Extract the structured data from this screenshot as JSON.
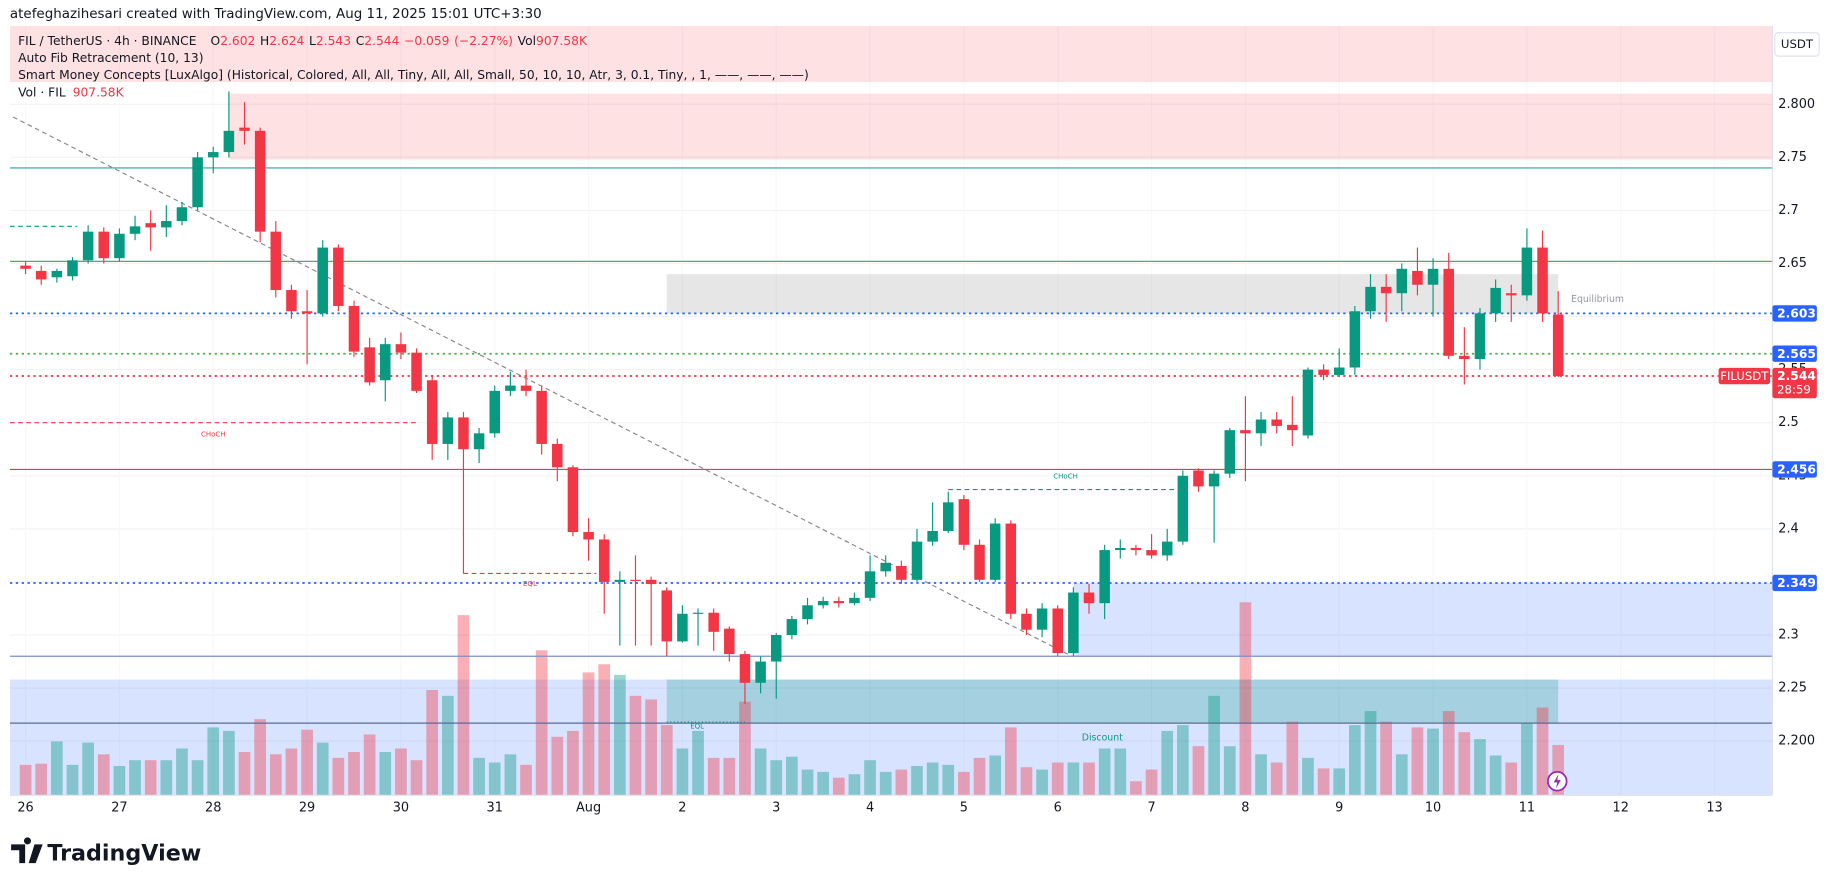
{
  "header": "atefeghazihesari created with TradingView.com, Aug 11, 2025 15:01 UTC+3:30",
  "brand": "TradingView",
  "chart_data": {
    "type": "candlestick",
    "symbol": "FIL / TetherUS · 4h · BINANCE",
    "ohlc_keys": [
      "O",
      "H",
      "L",
      "C"
    ],
    "change": {
      "value": -0.059,
      "label": "−0.059"
    },
    "change_pct": {
      "value": -2.27,
      "label": "(−2.27%)"
    },
    "indicators": [
      "Auto Fib Retracement (10, 13)",
      "Smart Money Concepts [LuxAlgo] (Historical, Colored, All, All, Tiny, All, All, Small, 50, 10, 10, Atr, 3, 0.1, Tiny, , 1, ——, ——, ——)"
    ],
    "currency": "USDT",
    "ticker": "FILUSDT",
    "countdown": "28:59",
    "up_color": "#089981",
    "down_color": "#f23645",
    "x": [
      0,
      1,
      2,
      3,
      4,
      5,
      6,
      7,
      8,
      9,
      10,
      11,
      12,
      13,
      14,
      15,
      16,
      17,
      18,
      19,
      20,
      21,
      22,
      23,
      24,
      25,
      26,
      27,
      28,
      29,
      30,
      31,
      32,
      33,
      34,
      35,
      36,
      37,
      38,
      39,
      40,
      41,
      42,
      43,
      44,
      45,
      46,
      47,
      48,
      49,
      50,
      51,
      52,
      53,
      54,
      55,
      56,
      57,
      58,
      59,
      60,
      61,
      62,
      63,
      64,
      65,
      66,
      67,
      68,
      69,
      70,
      71,
      72,
      73,
      74,
      75,
      76,
      77,
      78,
      79,
      80,
      81,
      82,
      83,
      84,
      85,
      86,
      87,
      88,
      89,
      90,
      91,
      92,
      93,
      94,
      95,
      96,
      97,
      98
    ],
    "ohlc": [
      [
        2.648,
        2.652,
        2.64,
        2.645
      ],
      [
        2.643,
        2.648,
        2.63,
        2.635
      ],
      [
        2.637,
        2.645,
        2.632,
        2.643
      ],
      [
        2.638,
        2.656,
        2.634,
        2.653
      ],
      [
        2.653,
        2.686,
        2.65,
        2.68
      ],
      [
        2.68,
        2.684,
        2.65,
        2.655
      ],
      [
        2.655,
        2.683,
        2.652,
        2.678
      ],
      [
        2.678,
        2.695,
        2.672,
        2.685
      ],
      [
        2.688,
        2.7,
        2.662,
        2.684
      ],
      [
        2.684,
        2.705,
        2.675,
        2.69
      ],
      [
        2.69,
        2.708,
        2.686,
        2.703
      ],
      [
        2.703,
        2.755,
        2.7,
        2.75
      ],
      [
        2.75,
        2.76,
        2.735,
        2.755
      ],
      [
        2.755,
        2.812,
        2.75,
        2.775
      ],
      [
        2.778,
        2.802,
        2.762,
        2.775
      ],
      [
        2.775,
        2.778,
        2.67,
        2.68
      ],
      [
        2.68,
        2.69,
        2.618,
        2.625
      ],
      [
        2.625,
        2.63,
        2.598,
        2.605
      ],
      [
        2.605,
        2.625,
        2.555,
        2.603
      ],
      [
        2.603,
        2.672,
        2.6,
        2.665
      ],
      [
        2.665,
        2.668,
        2.605,
        2.61
      ],
      [
        2.61,
        2.615,
        2.562,
        2.567
      ],
      [
        2.571,
        2.58,
        2.535,
        2.538
      ],
      [
        2.54,
        2.58,
        2.52,
        2.574
      ],
      [
        2.574,
        2.585,
        2.56,
        2.566
      ],
      [
        2.566,
        2.57,
        2.528,
        2.53
      ],
      [
        2.54,
        2.545,
        2.465,
        2.48
      ],
      [
        2.48,
        2.51,
        2.465,
        2.505
      ],
      [
        2.505,
        2.51,
        2.358,
        2.475
      ],
      [
        2.475,
        2.495,
        2.462,
        2.49
      ],
      [
        2.49,
        2.535,
        2.486,
        2.53
      ],
      [
        2.53,
        2.548,
        2.525,
        2.535
      ],
      [
        2.535,
        2.55,
        2.525,
        2.53
      ],
      [
        2.53,
        2.535,
        2.47,
        2.48
      ],
      [
        2.48,
        2.485,
        2.445,
        2.458
      ],
      [
        2.458,
        2.46,
        2.393,
        2.397
      ],
      [
        2.397,
        2.41,
        2.37,
        2.39
      ],
      [
        2.39,
        2.395,
        2.32,
        2.35
      ],
      [
        2.35,
        2.36,
        2.29,
        2.352
      ],
      [
        2.352,
        2.375,
        2.29,
        2.351
      ],
      [
        2.352,
        2.355,
        2.29,
        2.348
      ],
      [
        2.342,
        2.345,
        2.28,
        2.294
      ],
      [
        2.294,
        2.328,
        2.293,
        2.32
      ],
      [
        2.32,
        2.325,
        2.29,
        2.321
      ],
      [
        2.321,
        2.325,
        2.285,
        2.303
      ],
      [
        2.306,
        2.308,
        2.275,
        2.282
      ],
      [
        2.282,
        2.285,
        2.235,
        2.255
      ],
      [
        2.255,
        2.28,
        2.245,
        2.275
      ],
      [
        2.275,
        2.302,
        2.24,
        2.3
      ],
      [
        2.3,
        2.318,
        2.296,
        2.315
      ],
      [
        2.315,
        2.335,
        2.31,
        2.328
      ],
      [
        2.328,
        2.336,
        2.325,
        2.332
      ],
      [
        2.332,
        2.336,
        2.326,
        2.33
      ],
      [
        2.33,
        2.34,
        2.328,
        2.335
      ],
      [
        2.335,
        2.375,
        2.332,
        2.36
      ],
      [
        2.36,
        2.375,
        2.355,
        2.368
      ],
      [
        2.365,
        2.37,
        2.348,
        2.352
      ],
      [
        2.352,
        2.4,
        2.35,
        2.388
      ],
      [
        2.388,
        2.425,
        2.384,
        2.398
      ],
      [
        2.398,
        2.435,
        2.396,
        2.425
      ],
      [
        2.428,
        2.432,
        2.38,
        2.385
      ],
      [
        2.385,
        2.39,
        2.35,
        2.352
      ],
      [
        2.352,
        2.41,
        2.35,
        2.405
      ],
      [
        2.405,
        2.408,
        2.315,
        2.32
      ],
      [
        2.32,
        2.325,
        2.3,
        2.305
      ],
      [
        2.305,
        2.33,
        2.298,
        2.325
      ],
      [
        2.325,
        2.328,
        2.28,
        2.283
      ],
      [
        2.283,
        2.345,
        2.28,
        2.34
      ],
      [
        2.34,
        2.348,
        2.32,
        2.33
      ],
      [
        2.33,
        2.385,
        2.315,
        2.38
      ],
      [
        2.38,
        2.39,
        2.372,
        2.382
      ],
      [
        2.382,
        2.385,
        2.375,
        2.38
      ],
      [
        2.38,
        2.395,
        2.372,
        2.375
      ],
      [
        2.375,
        2.4,
        2.37,
        2.388
      ],
      [
        2.388,
        2.455,
        2.385,
        2.45
      ],
      [
        2.455,
        2.457,
        2.435,
        2.44
      ],
      [
        2.44,
        2.455,
        2.387,
        2.452
      ],
      [
        2.452,
        2.495,
        2.448,
        2.493
      ],
      [
        2.493,
        2.525,
        2.445,
        2.49
      ],
      [
        2.49,
        2.51,
        2.478,
        2.503
      ],
      [
        2.503,
        2.51,
        2.49,
        2.497
      ],
      [
        2.498,
        2.525,
        2.478,
        2.493
      ],
      [
        2.488,
        2.552,
        2.485,
        2.55
      ],
      [
        2.55,
        2.555,
        2.54,
        2.545
      ],
      [
        2.545,
        2.57,
        2.543,
        2.552
      ],
      [
        2.552,
        2.61,
        2.545,
        2.605
      ],
      [
        2.605,
        2.64,
        2.598,
        2.628
      ],
      [
        2.628,
        2.64,
        2.595,
        2.622
      ],
      [
        2.622,
        2.65,
        2.605,
        2.645
      ],
      [
        2.643,
        2.665,
        2.62,
        2.63
      ],
      [
        2.63,
        2.655,
        2.6,
        2.645
      ],
      [
        2.645,
        2.66,
        2.56,
        2.563
      ],
      [
        2.563,
        2.59,
        2.536,
        2.56
      ],
      [
        2.56,
        2.608,
        2.55,
        2.603
      ],
      [
        2.603,
        2.635,
        2.595,
        2.627
      ],
      [
        2.622,
        2.63,
        2.595,
        2.62
      ],
      [
        2.62,
        2.683,
        2.615,
        2.665
      ],
      [
        2.665,
        2.681,
        2.595,
        2.603
      ],
      [
        2.602,
        2.624,
        2.543,
        2.544
      ]
    ],
    "volume": {
      "key": "Vol",
      "name": "Vol · FIL",
      "last_label": "907.58K",
      "ylim": [
        0,
        13880
      ],
      "values": [
        549,
        570,
        971,
        549,
        950,
        739,
        528,
        633,
        633,
        633,
        844,
        633,
        1224,
        1161,
        781,
        1372,
        739,
        844,
        1182,
        950,
        675,
        781,
        1097,
        781,
        844,
        633,
        1899,
        1794,
        3249,
        675,
        591,
        739,
        549,
        2616,
        1055,
        1161,
        2216,
        2363,
        2173,
        1794,
        1730,
        1266,
        844,
        1161,
        675,
        675,
        1688,
        844,
        633,
        696,
        464,
        422,
        317,
        380,
        633,
        422,
        464,
        528,
        591,
        549,
        422,
        675,
        717,
        1224,
        506,
        464,
        591,
        591,
        591,
        844,
        844,
        253,
        464,
        1161,
        1266,
        886,
        1794,
        886,
        3482,
        739,
        591,
        1329,
        675,
        485,
        485,
        1266,
        1519,
        1329,
        739,
        1224,
        1203,
        1519,
        1139,
        1013,
        717,
        591,
        1308,
        1583,
        907.58
      ]
    },
    "xlim": [
      -1,
      111.7
    ],
    "xticks": [
      {
        "value": 0,
        "label": "26"
      },
      {
        "value": 6,
        "label": "27"
      },
      {
        "value": 12,
        "label": "28"
      },
      {
        "value": 18,
        "label": "29"
      },
      {
        "value": 24,
        "label": "30"
      },
      {
        "value": 30,
        "label": "31"
      },
      {
        "value": 36,
        "label": "Aug"
      },
      {
        "value": 42,
        "label": "2"
      },
      {
        "value": 48,
        "label": "3"
      },
      {
        "value": 54,
        "label": "4"
      },
      {
        "value": 60,
        "label": "5"
      },
      {
        "value": 66,
        "label": "6"
      },
      {
        "value": 72,
        "label": "7"
      },
      {
        "value": 78,
        "label": "8"
      },
      {
        "value": 84,
        "label": "9"
      },
      {
        "value": 90,
        "label": "10"
      },
      {
        "value": 96,
        "label": "11"
      },
      {
        "value": 102,
        "label": "12"
      },
      {
        "value": 108,
        "label": "13"
      }
    ],
    "ylim": [
      2.149,
      2.874
    ],
    "yticks": [
      {
        "value": 2.2,
        "label": "2.200"
      },
      2.25,
      2.3,
      2.35,
      2.4,
      2.45,
      2.5,
      2.55,
      2.6,
      2.65,
      2.7,
      2.75,
      {
        "value": 2.8,
        "label": "2.800"
      }
    ],
    "grid": true,
    "price_tags": [
      2.603,
      2.565,
      2.456,
      2.349
    ],
    "tag_color": "#2962ff",
    "levels": [
      {
        "value": 2.74,
        "color": "#26a69a",
        "style": "solid"
      },
      {
        "value": 2.652,
        "color": "#4caf50",
        "style": "solid"
      },
      {
        "value": 2.603,
        "color": "#2962ff",
        "style": "dotted"
      },
      {
        "value": 2.565,
        "color": "#4caf50",
        "style": "dotted"
      },
      {
        "value": 2.544,
        "color": "#f23645",
        "style": "dotted"
      },
      {
        "value": 2.456,
        "color": "#f23645",
        "style": "solid"
      },
      {
        "value": 2.349,
        "color": "#2962ff",
        "style": "dotted"
      },
      {
        "value": 2.28,
        "color": "#7e8fc4",
        "style": "solid"
      },
      {
        "value": 2.217,
        "color": "#5b6b99",
        "style": "solid"
      }
    ],
    "segments": [
      {
        "value": 2.5,
        "from": -1,
        "to": 25,
        "color": "#f23645",
        "label": "CHoCH"
      },
      {
        "value": 2.685,
        "from": -1,
        "to": 3.3,
        "color": "#089981"
      },
      {
        "value": 2.437,
        "from": 59,
        "to": 74,
        "color": "#089981",
        "label": "CHoCH"
      },
      {
        "value": 2.358,
        "from": 28,
        "to": 36.5,
        "color": "#f23645",
        "label": "EQL"
      },
      {
        "value": 2.218,
        "from": 41,
        "to": 46,
        "color": "#089981",
        "label": "EQL"
      }
    ],
    "zones": [
      {
        "from": -1,
        "to": 111.7,
        "lo": 2.821,
        "hi": 2.874,
        "color": "rgba(242,54,69,0.15)"
      },
      {
        "from": 13,
        "to": 111.7,
        "lo": 2.748,
        "hi": 2.81,
        "color": "rgba(242,54,69,0.15)"
      },
      {
        "from": 41,
        "to": 98,
        "lo": 2.603,
        "hi": 2.64,
        "color": "rgba(140,140,140,0.22)",
        "label": "Equilibrium"
      },
      {
        "from": 67,
        "to": 111.7,
        "lo": 2.28,
        "hi": 2.349,
        "color": "rgba(41,98,255,0.18)"
      },
      {
        "from": -1,
        "to": 111.7,
        "lo": 2.149,
        "hi": 2.258,
        "color": "rgba(41,98,255,0.18)",
        "label": "Discount"
      },
      {
        "from": 41,
        "to": 98,
        "lo": 2.217,
        "hi": 2.258,
        "color": "rgba(8,153,129,0.25)"
      }
    ],
    "trendline": {
      "from": [
        -0.8,
        2.788
      ],
      "to": [
        66.9,
        2.28
      ],
      "color": "#888"
    }
  }
}
